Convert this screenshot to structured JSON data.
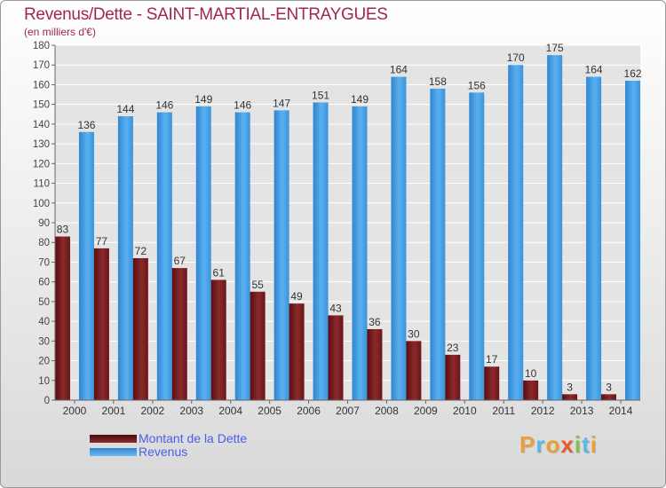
{
  "title": "Revenus/Dette - SAINT-MARTIAL-ENTRAYGUES",
  "subtitle": "(en milliers d'€)",
  "logo": "Proxiti",
  "colors": {
    "dette": "#7a1a1a",
    "revenus": "#3a96df",
    "title": "#a0284a",
    "legend_text": "#4a5ee8"
  },
  "chart_data": {
    "type": "bar",
    "categories": [
      "2000",
      "2001",
      "2002",
      "2003",
      "2004",
      "2005",
      "2006",
      "2007",
      "2008",
      "2009",
      "2010",
      "2011",
      "2012",
      "2013",
      "2014"
    ],
    "series": [
      {
        "name": "Montant de la Dette",
        "values": [
          83,
          77,
          72,
          67,
          61,
          55,
          49,
          43,
          36,
          30,
          23,
          17,
          10,
          3,
          3
        ]
      },
      {
        "name": "Revenus",
        "values": [
          136,
          144,
          146,
          149,
          146,
          147,
          151,
          149,
          164,
          158,
          156,
          170,
          175,
          164,
          162
        ]
      }
    ],
    "ylim": [
      0,
      180
    ],
    "yticks": [
      0,
      10,
      20,
      30,
      40,
      50,
      60,
      70,
      80,
      90,
      100,
      110,
      120,
      130,
      140,
      150,
      160,
      170,
      180
    ],
    "grid": true,
    "legend_position": "bottom-left"
  }
}
